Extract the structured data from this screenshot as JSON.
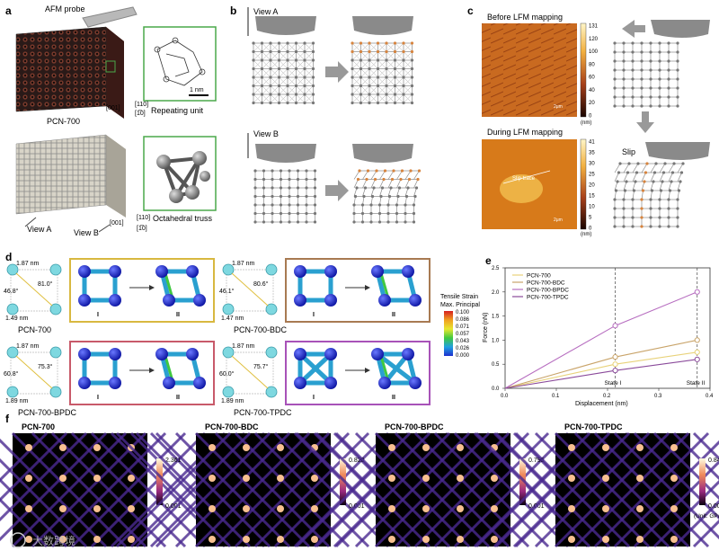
{
  "panels": {
    "a": {
      "letter": "a",
      "probe_label": "AFM probe",
      "material_label": "PCN-700",
      "repeating_unit_label": "Repeating unit",
      "scale_bar": "1 nm",
      "octahedral_label": "Octahedral truss",
      "view_a": "View A",
      "view_b": "View B",
      "axes_top": [
        "[110]",
        "[001]",
        "[1̅0]"
      ],
      "axes_bottom": [
        "[110]",
        "[001]",
        "[1̅0]"
      ]
    },
    "b": {
      "letter": "b",
      "view_a": "View A",
      "view_b": "View B"
    },
    "c": {
      "letter": "c",
      "before_title": "Before LFM mapping",
      "during_title": "During LFM mapping",
      "scale_top": [
        "131",
        "120",
        "100",
        "80",
        "60",
        "40",
        "20",
        "0"
      ],
      "scale_bottom": [
        "41",
        "35",
        "30",
        "25",
        "20",
        "15",
        "10",
        "5",
        "0"
      ],
      "unit": "(nm)",
      "slip_trace": "Slip trace",
      "slip": "Slip",
      "bar_top": "2μm",
      "bar_bottom": "2μm"
    },
    "d": {
      "letter": "d",
      "legend_title": "Tensile Strain",
      "legend_sub": "Max. Principal",
      "legend_values": [
        "0.100",
        "0.086",
        "0.071",
        "0.057",
        "0.043",
        "0.026",
        "0.000"
      ],
      "state_i": "I",
      "state_ii": "II",
      "models": [
        {
          "name": "PCN-700",
          "dim": "1.87 nm",
          "dim2": "1.49 nm",
          "a1": "46.8°",
          "a2": "81.0°"
        },
        {
          "name": "PCN-700-BDC",
          "dim": "1.87 nm",
          "dim2": "1.47 nm",
          "a1": "46.1°",
          "a2": "80.6°"
        },
        {
          "name": "PCN-700-BPDC",
          "dim": "1.87 nm",
          "dim2": "1.89 nm",
          "a1": "60.8°",
          "a2": "75.3°"
        },
        {
          "name": "PCN-700-TPDC",
          "dim": "1.87 nm",
          "dim2": "1.89 nm",
          "a1": "60.0°",
          "a2": "75.7°"
        }
      ]
    },
    "e": {
      "letter": "e"
    },
    "f": {
      "letter": "f",
      "maps": [
        {
          "name": "PCN-700",
          "max": "2.361",
          "min": "0.001",
          "unit": ""
        },
        {
          "name": "PCN-700-BDC",
          "max": "0.820",
          "min": "0.001",
          "unit": ""
        },
        {
          "name": "PCN-700-BPDC",
          "max": "0.795",
          "min": "0.001",
          "unit": ""
        },
        {
          "name": "PCN-700-TPDC",
          "max": "0.840",
          "min": "0.001",
          "unit": "(Unit: GPa)"
        }
      ]
    }
  },
  "watermark": "大数跨境",
  "chart_data": {
    "type": "line",
    "xlabel": "Displacement (nm)",
    "ylabel": "Force (nN)",
    "xlim": [
      0.0,
      0.4
    ],
    "ylim": [
      0.0,
      2.5
    ],
    "xticks": [
      "0.0",
      "0.1",
      "0.2",
      "0.3",
      "0.4"
    ],
    "yticks": [
      "0.0",
      "0.5",
      "1.0",
      "1.5",
      "2.0",
      "2.5"
    ],
    "legend_position": "top-left",
    "state_lines": [
      {
        "label": "State I",
        "x": 0.215
      },
      {
        "label": "State II",
        "x": 0.375
      }
    ],
    "series": [
      {
        "name": "PCN-700",
        "color": "#e8d27a",
        "x": [
          0,
          0.215,
          0.375
        ],
        "y": [
          0,
          0.5,
          0.75
        ]
      },
      {
        "name": "PCN-700-BDC",
        "color": "#c9a46a",
        "x": [
          0,
          0.215,
          0.375
        ],
        "y": [
          0,
          0.65,
          1.0
        ]
      },
      {
        "name": "PCN-700-BPDC",
        "color": "#b76ec0",
        "x": [
          0,
          0.215,
          0.375
        ],
        "y": [
          0,
          1.3,
          2.0
        ]
      },
      {
        "name": "PCN-700-TPDC",
        "color": "#8a4a9a",
        "x": [
          0,
          0.215,
          0.375
        ],
        "y": [
          0,
          0.37,
          0.6
        ]
      }
    ]
  },
  "colors": {
    "crystal": "#7a3a2c",
    "lattice_orange": "#d7843e",
    "strain_blue": "#1e2fd0",
    "frame_yellow": "#d8b840",
    "frame_brown": "#a87a52",
    "frame_red": "#c85a6a",
    "frame_purple": "#a852b8",
    "inset_green": "#4aa84a"
  }
}
